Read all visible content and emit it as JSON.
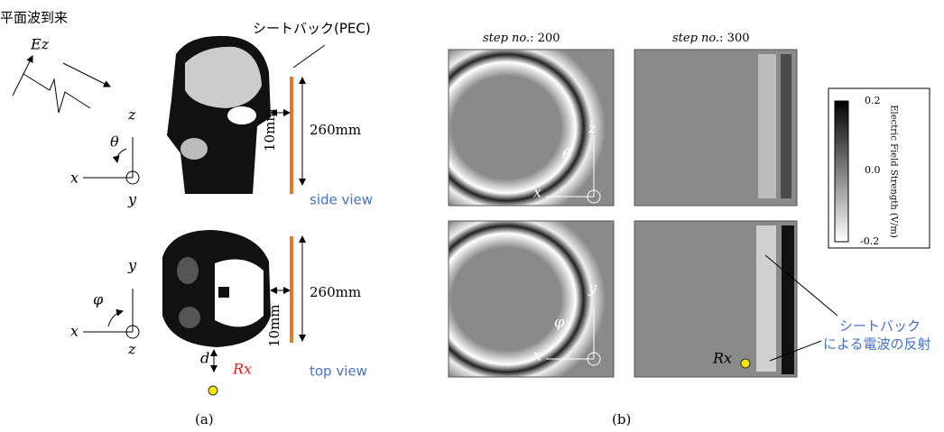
{
  "panel_a": {
    "incident_label": "平面波到来",
    "field_label": "Ez",
    "side_axes": {
      "z": "z",
      "theta": "θ",
      "x": "x",
      "y": "y"
    },
    "seatback_label": "シートバック(PEC)",
    "side_view": {
      "height": "260mm",
      "gap": "10mm",
      "caption": "side view"
    },
    "top_axes": {
      "y": "y",
      "phi": "φ",
      "x": "x",
      "z": "z"
    },
    "top_view": {
      "height": "260mm",
      "gap": "10mm",
      "distance": "d",
      "receiver": "Rx",
      "caption": "top view"
    },
    "caption": "(a)"
  },
  "panel_b": {
    "columns": [
      {
        "label": "step no.",
        "value": ": 200"
      },
      {
        "label": "step no.",
        "value": ": 300"
      }
    ],
    "side_axes": {
      "z": "z",
      "theta": "θ",
      "x": "x"
    },
    "top_axes": {
      "y": "y",
      "phi": "φ",
      "x": "x"
    },
    "colorbar": {
      "title": "Electric Field Strength (V/m)",
      "ticks": [
        "0.2",
        "0.0",
        "-0.2"
      ]
    },
    "annotation": [
      "シートバック",
      "による電波の反射"
    ],
    "receiver": "Rx",
    "caption": "(b)"
  }
}
